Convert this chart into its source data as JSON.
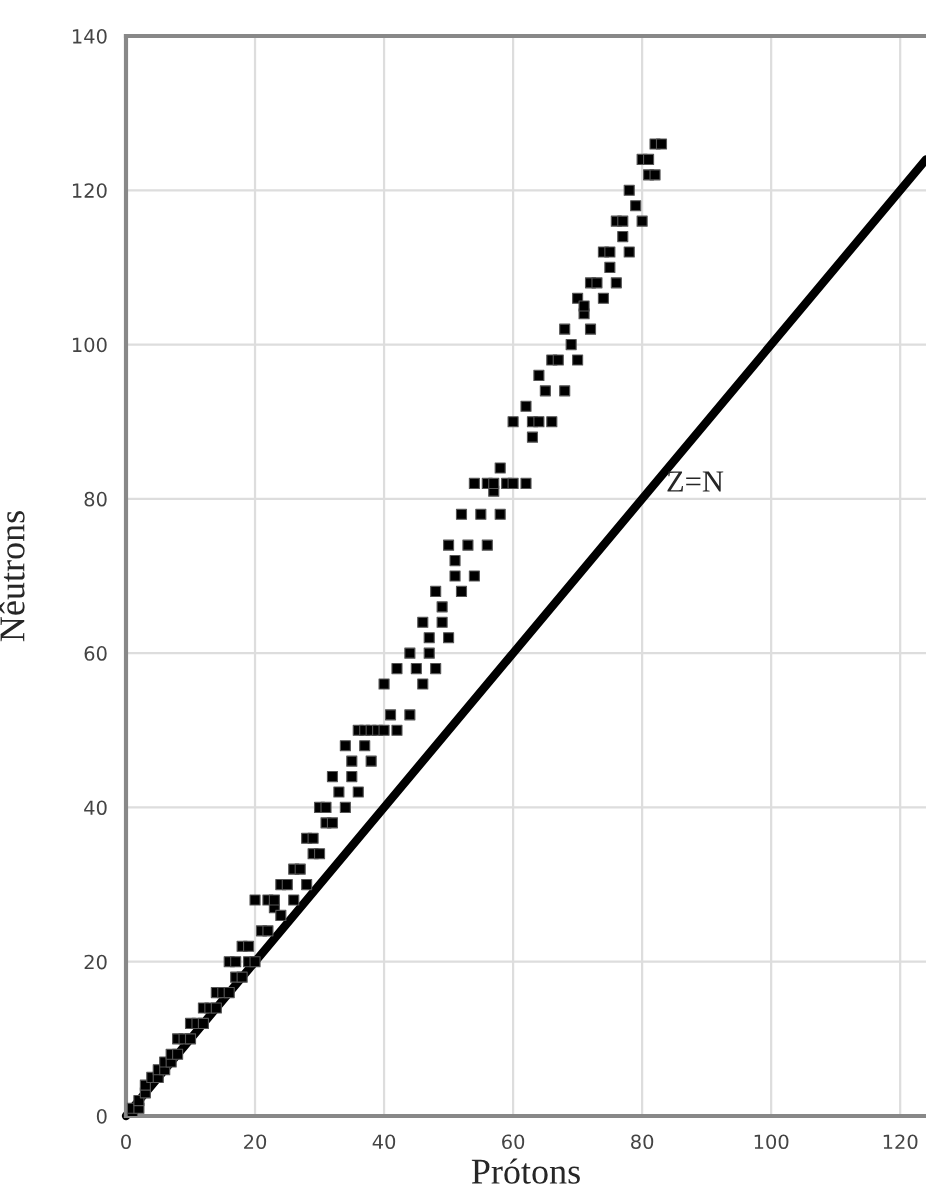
{
  "chart_data": {
    "type": "scatter",
    "xlabel": "Prótons",
    "ylabel": "Nêutrons",
    "xlim": [
      0,
      124
    ],
    "ylim": [
      0,
      140
    ],
    "xticks": [
      0,
      20,
      40,
      60,
      80,
      100,
      120
    ],
    "yticks": [
      0,
      20,
      40,
      60,
      80,
      100,
      120,
      140
    ],
    "grid": true,
    "series": [
      {
        "color": "#000000",
        "marker": "square",
        "x": [
          1,
          1,
          2,
          2,
          3,
          3,
          4,
          5,
          5,
          6,
          6,
          7,
          7,
          8,
          8,
          9,
          10,
          10,
          11,
          12,
          12,
          13,
          14,
          14,
          15,
          16,
          16,
          17,
          17,
          18,
          18,
          19,
          19,
          20,
          20,
          21,
          22,
          22,
          23,
          23,
          24,
          24,
          25,
          26,
          26,
          27,
          28,
          28,
          29,
          29,
          30,
          30,
          31,
          31,
          32,
          32,
          33,
          34,
          34,
          35,
          35,
          36,
          36,
          37,
          37,
          38,
          38,
          39,
          40,
          40,
          41,
          42,
          42,
          44,
          44,
          45,
          46,
          46,
          47,
          47,
          48,
          48,
          49,
          49,
          50,
          50,
          51,
          51,
          52,
          52,
          53,
          54,
          54,
          55,
          56,
          56,
          57,
          57,
          58,
          58,
          59,
          60,
          60,
          62,
          62,
          63,
          63,
          64,
          64,
          65,
          66,
          66,
          67,
          68,
          68,
          69,
          70,
          70,
          71,
          71,
          72,
          72,
          73,
          74,
          74,
          75,
          75,
          76,
          76,
          77,
          77,
          78,
          78,
          79,
          80,
          80,
          81,
          81,
          82,
          82,
          83
        ],
        "values": [
          0,
          1,
          1,
          2,
          3,
          4,
          5,
          5,
          6,
          6,
          7,
          7,
          8,
          8,
          10,
          10,
          10,
          12,
          12,
          12,
          14,
          14,
          14,
          16,
          16,
          16,
          20,
          18,
          20,
          18,
          22,
          20,
          22,
          20,
          28,
          24,
          24,
          28,
          27,
          28,
          26,
          30,
          30,
          28,
          32,
          32,
          30,
          36,
          34,
          36,
          34,
          40,
          38,
          40,
          38,
          44,
          42,
          40,
          48,
          44,
          46,
          42,
          50,
          48,
          50,
          46,
          50,
          50,
          50,
          56,
          52,
          50,
          58,
          52,
          60,
          58,
          56,
          64,
          60,
          62,
          58,
          68,
          64,
          66,
          62,
          74,
          70,
          72,
          68,
          78,
          74,
          70,
          82,
          78,
          74,
          82,
          81,
          82,
          78,
          84,
          82,
          82,
          90,
          82,
          92,
          88,
          90,
          90,
          96,
          94,
          90,
          98,
          98,
          94,
          102,
          100,
          98,
          106,
          104,
          105,
          102,
          108,
          108,
          106,
          112,
          110,
          112,
          108,
          116,
          114,
          116,
          112,
          120,
          118,
          116,
          124,
          122,
          124,
          122,
          126,
          126
        ]
      },
      {
        "type": "line",
        "color": "#000000",
        "line_style": "solid",
        "x": [
          0,
          124
        ],
        "values": [
          0,
          124
        ]
      }
    ],
    "annotations": [
      "Z=N"
    ]
  }
}
